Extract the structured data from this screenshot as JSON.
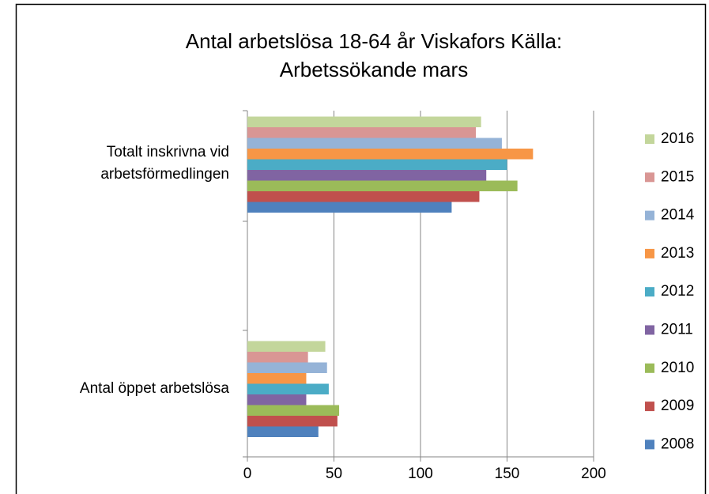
{
  "chart_data": {
    "type": "bar",
    "orientation": "horizontal",
    "title": "Antal arbetslösa 18-64 år Viskafors Källa: Arbetssökande mars",
    "categories": [
      "Antal öppet arbetslösa",
      "Totalt inskrivna vid arbetsförmedlingen"
    ],
    "series": [
      {
        "name": "2008",
        "color": "#4f81bd",
        "values": [
          41,
          118
        ]
      },
      {
        "name": "2009",
        "color": "#c0504d",
        "values": [
          52,
          134
        ]
      },
      {
        "name": "2010",
        "color": "#9bbb59",
        "values": [
          53,
          156
        ]
      },
      {
        "name": "2011",
        "color": "#8064a2",
        "values": [
          34,
          138
        ]
      },
      {
        "name": "2012",
        "color": "#4bacc6",
        "values": [
          47,
          150
        ]
      },
      {
        "name": "2013",
        "color": "#f79646",
        "values": [
          34,
          165
        ]
      },
      {
        "name": "2014",
        "color": "#95b3d7",
        "values": [
          46,
          147
        ]
      },
      {
        "name": "2015",
        "color": "#d99694",
        "values": [
          35,
          132
        ]
      },
      {
        "name": "2016",
        "color": "#c3d69b",
        "values": [
          45,
          135
        ]
      }
    ],
    "xlim": [
      0,
      200
    ],
    "xticks": [
      0,
      50,
      100,
      150,
      200
    ],
    "grid": true,
    "legend": "right"
  }
}
